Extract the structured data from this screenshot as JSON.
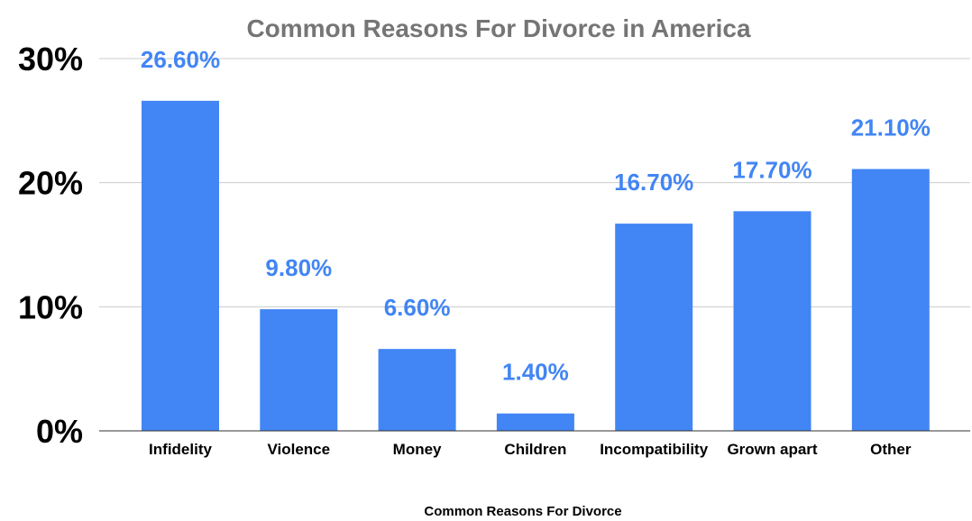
{
  "chart_data": {
    "type": "bar",
    "title": "Common Reasons For Divorce in America",
    "xlabel": "Common Reasons For Divorce",
    "ylabel": "",
    "categories": [
      "Infidelity",
      "Violence",
      "Money",
      "Children",
      "Incompatibility",
      "Grown apart",
      "Other"
    ],
    "values": [
      26.6,
      9.8,
      6.6,
      1.4,
      16.7,
      17.7,
      21.1
    ],
    "data_labels": [
      "26.60%",
      "9.80%",
      "6.60%",
      "1.40%",
      "16.70%",
      "17.70%",
      "21.10%"
    ],
    "ylim": [
      0,
      30
    ],
    "yticks": [
      0,
      10,
      20,
      30
    ],
    "ytick_labels": [
      "0%",
      "10%",
      "20%",
      "30%"
    ],
    "grid": true,
    "legend": "none",
    "colors": {
      "bar": "#4285f4",
      "data_label": "#4285f4",
      "title": "#757575",
      "grid": "#cccccc"
    }
  }
}
